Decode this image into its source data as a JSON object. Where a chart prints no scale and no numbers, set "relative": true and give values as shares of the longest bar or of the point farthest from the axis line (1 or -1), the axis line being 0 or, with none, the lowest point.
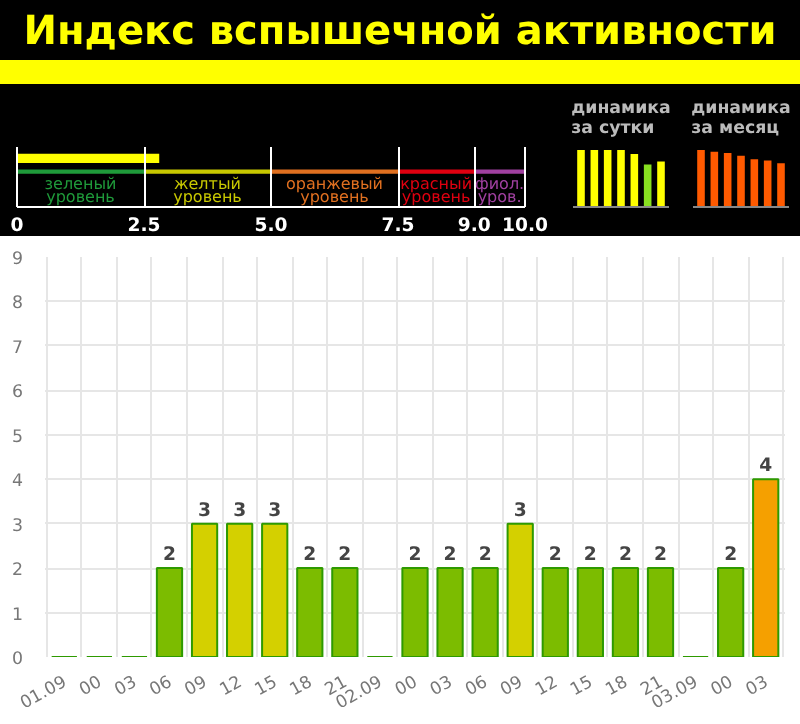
{
  "chart_data": [
    {
      "type": "bar",
      "title": "Индекс вспышечной активности",
      "orientation": "horizontal",
      "categories": [
        null
      ],
      "values": [
        2.8
      ],
      "color": "#ffff00",
      "xlim": [
        0,
        10
      ],
      "xticks": [
        0,
        2.5,
        {
          "value": 5,
          "label": "5.0"
        },
        7.5,
        {
          "value": 9,
          "label": "9.0"
        },
        {
          "value": 10,
          "label": "10.0"
        }
      ],
      "tick_labels": "x",
      "grid": "x",
      "bands": [
        {
          "axis": "x",
          "from": 0,
          "to": 2.5,
          "label": "зеленый уровень",
          "color": "#1f9a3a"
        },
        {
          "axis": "x",
          "from": 2.5,
          "to": 5,
          "label": "желтый уровень",
          "color": "#c8c800"
        },
        {
          "axis": "x",
          "from": 5,
          "to": 7.5,
          "label": "оранжевый уровень",
          "color": "#e07020"
        },
        {
          "axis": "x",
          "from": 7.5,
          "to": 9,
          "label": "красный уровень",
          "color": "#e00010"
        },
        {
          "axis": "x",
          "from": 9,
          "to": 10,
          "label": "фиол. уров.",
          "color": "#a040a0"
        }
      ]
    },
    {
      "type": "bar",
      "title": "динамика за сутки",
      "relative": true,
      "categories": [
        null,
        null,
        null,
        null,
        null,
        null,
        null
      ],
      "values": [
        1,
        1,
        1,
        1,
        0.93,
        0.75,
        0.8
      ],
      "colors": [
        "#ffff00",
        "#ffff00",
        "#ffff00",
        "#ffff00",
        "#ffff00",
        "#88e020",
        "#ffff00"
      ],
      "tick_labels": false
    },
    {
      "type": "bar",
      "title": "динамика за месяц",
      "relative": true,
      "categories": [
        null,
        null,
        null,
        null,
        null,
        null,
        null
      ],
      "values": [
        1,
        0.97,
        0.95,
        0.9,
        0.84,
        0.82,
        0.77
      ],
      "colors": [
        "#ff5a00",
        "#ff5a00",
        "#ff5a00",
        "#ff5a00",
        "#ff5a00",
        "#ff5a00",
        "#ff5a00"
      ],
      "tick_labels": false
    },
    {
      "type": "bar",
      "categories": [
        "01.09",
        "00",
        "03",
        "06",
        "09",
        "12",
        "15",
        "18",
        "21",
        "02.09",
        "00",
        "03",
        "06",
        "09",
        "12",
        "15",
        "18",
        "21",
        "03.09",
        "00",
        "03"
      ],
      "values": [
        0,
        0,
        0,
        2,
        3,
        3,
        3,
        2,
        2,
        0,
        2,
        2,
        2,
        3,
        2,
        2,
        2,
        2,
        0,
        2,
        4
      ],
      "colors": [
        "#2e9a00",
        "#2e9a00",
        "#2e9a00",
        "#7cbc00",
        "#d4d000",
        "#d4d000",
        "#d4d000",
        "#7cbc00",
        "#7cbc00",
        "#2e9a00",
        "#7cbc00",
        "#7cbc00",
        "#7cbc00",
        "#d4d000",
        "#7cbc00",
        "#7cbc00",
        "#7cbc00",
        "#7cbc00",
        "#2e9a00",
        "#7cbc00",
        "#f5a000"
      ],
      "value_labels": [
        null,
        null,
        null,
        "2",
        "3",
        "3",
        "3",
        "2",
        "2",
        null,
        "2",
        "2",
        "2",
        "3",
        "2",
        "2",
        "2",
        "2",
        null,
        "2",
        "4"
      ],
      "ylim": [
        0,
        9
      ],
      "yticks": [
        0,
        1,
        2,
        3,
        4,
        5,
        6,
        7,
        8,
        9
      ],
      "grid": true
    }
  ]
}
